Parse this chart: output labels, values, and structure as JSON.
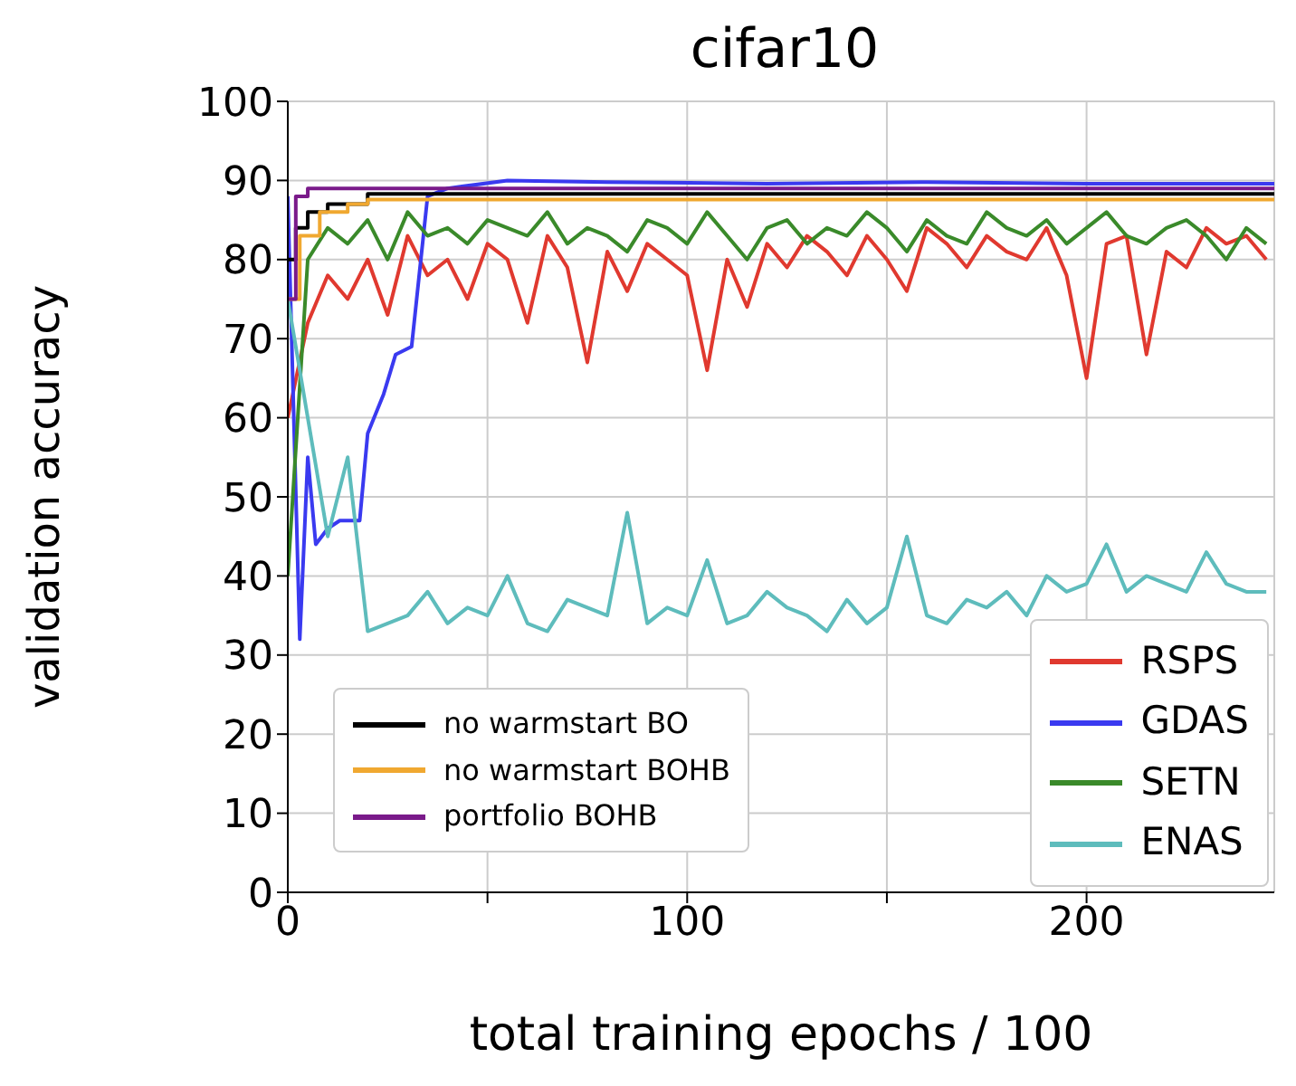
{
  "chart_data": {
    "type": "line",
    "title": "cifar10",
    "xlabel": "total training epochs / 100",
    "ylabel": "validation accuracy",
    "xlim": [
      0,
      247
    ],
    "xticks": [
      0,
      {
        "value": 50,
        "label": null
      },
      {
        "value": 100,
        "label": "100"
      },
      {
        "value": 150,
        "label": null
      },
      {
        "value": 200,
        "label": "200"
      }
    ],
    "ylim": [
      0,
      100
    ],
    "yticks": [
      0,
      10,
      20,
      30,
      40,
      50,
      60,
      70,
      80,
      90,
      100
    ],
    "grid": true,
    "legend": "bottom right",
    "marker": "none",
    "line_style": "solid",
    "series": [
      {
        "name": "RSPS",
        "type": "line",
        "color": "#e0392f",
        "x": [
          0,
          5,
          10,
          15,
          20,
          25,
          30,
          35,
          40,
          45,
          50,
          55,
          60,
          65,
          70,
          75,
          80,
          85,
          90,
          95,
          100,
          105,
          110,
          115,
          120,
          125,
          130,
          135,
          140,
          145,
          150,
          155,
          160,
          165,
          170,
          175,
          180,
          185,
          190,
          195,
          200,
          205,
          210,
          215,
          220,
          225,
          230,
          235,
          240,
          245
        ],
        "values": [
          60,
          72,
          78,
          75,
          80,
          73,
          83,
          78,
          80,
          75,
          82,
          80,
          72,
          83,
          79,
          67,
          81,
          76,
          82,
          80,
          78,
          66,
          80,
          74,
          82,
          79,
          83,
          81,
          78,
          83,
          80,
          76,
          84,
          82,
          79,
          83,
          81,
          80,
          84,
          78,
          65,
          82,
          83,
          68,
          81,
          79,
          84,
          82,
          83,
          80
        ]
      },
      {
        "name": "GDAS",
        "type": "line",
        "color": "#3a3af0",
        "x": [
          0,
          3,
          5,
          7,
          10,
          13,
          18,
          20,
          24,
          27,
          31,
          35,
          40,
          55,
          80,
          120,
          160,
          200,
          247
        ],
        "values": [
          88,
          32,
          55,
          44,
          46,
          47,
          47,
          58,
          63,
          68,
          69,
          88,
          89,
          90,
          89.8,
          89.6,
          89.8,
          89.6,
          89.6
        ]
      },
      {
        "name": "SETN",
        "type": "line",
        "color": "#3a8a2a",
        "x": [
          0,
          5,
          10,
          15,
          20,
          25,
          30,
          35,
          40,
          45,
          50,
          55,
          60,
          65,
          70,
          75,
          80,
          85,
          90,
          95,
          100,
          105,
          110,
          115,
          120,
          125,
          130,
          135,
          140,
          145,
          150,
          155,
          160,
          165,
          170,
          175,
          180,
          185,
          190,
          195,
          200,
          205,
          210,
          215,
          220,
          225,
          230,
          235,
          240,
          245
        ],
        "values": [
          40,
          80,
          84,
          82,
          85,
          80,
          86,
          83,
          84,
          82,
          85,
          84,
          83,
          86,
          82,
          84,
          83,
          81,
          85,
          84,
          82,
          86,
          83,
          80,
          84,
          85,
          82,
          84,
          83,
          86,
          84,
          81,
          85,
          83,
          82,
          86,
          84,
          83,
          85,
          82,
          84,
          86,
          83,
          82,
          84,
          85,
          83,
          80,
          84,
          82
        ]
      },
      {
        "name": "ENAS",
        "type": "line",
        "color": "#5ebcbc",
        "x": [
          0,
          5,
          10,
          15,
          20,
          25,
          30,
          35,
          40,
          45,
          50,
          55,
          60,
          65,
          70,
          75,
          80,
          85,
          90,
          95,
          100,
          105,
          110,
          115,
          120,
          125,
          130,
          135,
          140,
          145,
          150,
          155,
          160,
          165,
          170,
          175,
          180,
          185,
          190,
          195,
          200,
          205,
          210,
          215,
          220,
          225,
          230,
          235,
          240,
          245
        ],
        "values": [
          75,
          60,
          45,
          55,
          33,
          34,
          35,
          38,
          34,
          36,
          35,
          40,
          34,
          33,
          37,
          36,
          35,
          48,
          34,
          36,
          35,
          42,
          34,
          35,
          38,
          36,
          35,
          33,
          37,
          34,
          36,
          45,
          35,
          34,
          37,
          36,
          38,
          35,
          40,
          38,
          39,
          44,
          38,
          40,
          39,
          38,
          43,
          39,
          38,
          38
        ]
      },
      {
        "name": "no warmstart BO",
        "type": "step",
        "color": "#000000",
        "x": [
          0,
          2,
          5,
          10,
          20,
          247
        ],
        "values": [
          80,
          84,
          86,
          87,
          88.3,
          88.3
        ]
      },
      {
        "name": "no warmstart BOHB",
        "type": "step",
        "color": "#f0a830",
        "x": [
          0,
          3,
          8,
          15,
          20,
          247
        ],
        "values": [
          75,
          83,
          86,
          87,
          87.6,
          87.6
        ]
      },
      {
        "name": "portfolio BOHB",
        "type": "step",
        "color": "#7a1a8a",
        "x": [
          0,
          2,
          5,
          247
        ],
        "values": [
          75,
          88,
          89,
          89
        ]
      }
    ]
  }
}
